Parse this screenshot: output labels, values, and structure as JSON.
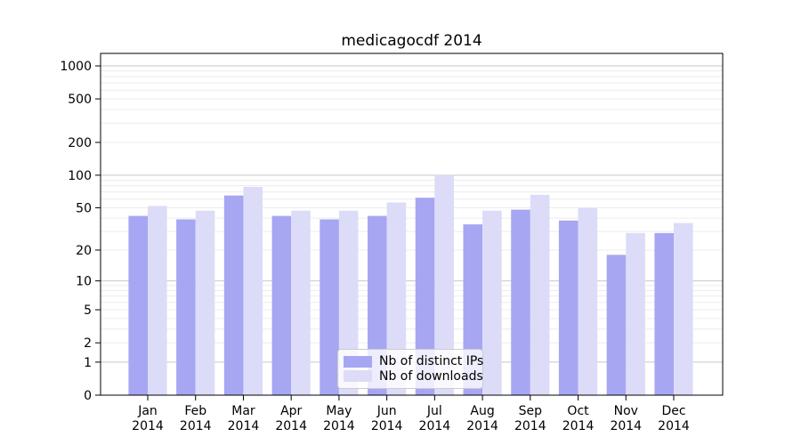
{
  "title": "medicagocdf 2014",
  "colors": {
    "series_distinct_ips": "#a6a6f2",
    "series_downloads": "#dcdcf8",
    "axis_spine": "#000000",
    "grid_major": "#c8c8c8",
    "grid_minor": "#ececec",
    "legend_border": "#cccccc",
    "legend_background": "rgba(255,255,255,0.8)"
  },
  "chart_data": {
    "type": "bar",
    "title": "medicagocdf 2014",
    "xlabel": "",
    "ylabel": "",
    "categories": [
      "Jan 2014",
      "Feb 2014",
      "Mar 2014",
      "Apr 2014",
      "May 2014",
      "Jun 2014",
      "Jul 2014",
      "Aug 2014",
      "Sep 2014",
      "Oct 2014",
      "Nov 2014",
      "Dec 2014"
    ],
    "series": [
      {
        "name": "Nb of distinct IPs",
        "color": "#a6a6f2",
        "values": [
          42,
          39,
          65,
          42,
          39,
          42,
          62,
          35,
          48,
          38,
          18,
          29
        ]
      },
      {
        "name": "Nb of downloads",
        "color": "#dcdcf8",
        "values": [
          52,
          47,
          78,
          47,
          47,
          56,
          100,
          47,
          66,
          50,
          29,
          36
        ]
      }
    ],
    "yscale": "log1p",
    "ylim": [
      0,
      1200
    ],
    "ytick_values": [
      1000,
      500,
      200,
      100,
      50,
      20,
      10,
      5,
      2,
      1,
      0
    ],
    "ytick_labels": [
      "1000",
      "500",
      "200",
      "100",
      "50",
      "20",
      "10",
      "5",
      "2",
      "1",
      "0"
    ],
    "grid": true,
    "legend_position": "bottom-center"
  }
}
